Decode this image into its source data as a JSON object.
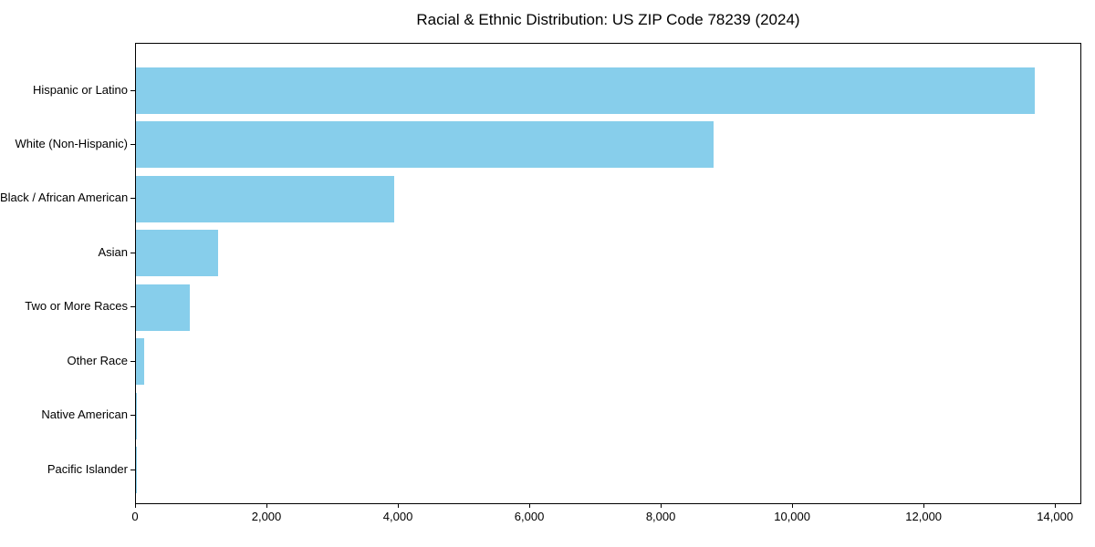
{
  "chart_data": {
    "type": "bar",
    "orientation": "horizontal",
    "title": "Racial & Ethnic Distribution: US ZIP Code 78239 (2024)",
    "categories": [
      "Hispanic or Latino",
      "White (Non-Hispanic)",
      "Black / African American",
      "Asian",
      "Two or More Races",
      "Other Race",
      "Native American",
      "Pacific Islander"
    ],
    "values": [
      13710,
      8810,
      3940,
      1250,
      820,
      120,
      20,
      10
    ],
    "xlabel": "",
    "ylabel": "",
    "xlim": [
      0,
      14400
    ],
    "xticks": [
      {
        "value": 0,
        "label": "0"
      },
      {
        "value": 2000,
        "label": "2,000"
      },
      {
        "value": 4000,
        "label": "4,000"
      },
      {
        "value": 6000,
        "label": "6,000"
      },
      {
        "value": 8000,
        "label": "8,000"
      },
      {
        "value": 10000,
        "label": "10,000"
      },
      {
        "value": 12000,
        "label": "12,000"
      },
      {
        "value": 14000,
        "label": "14,000"
      }
    ],
    "grid": false,
    "legend": null,
    "bar_color": "#87ceeb",
    "axis_color": "#000000",
    "text_color": "#000000",
    "background_color": "#ffffff"
  }
}
